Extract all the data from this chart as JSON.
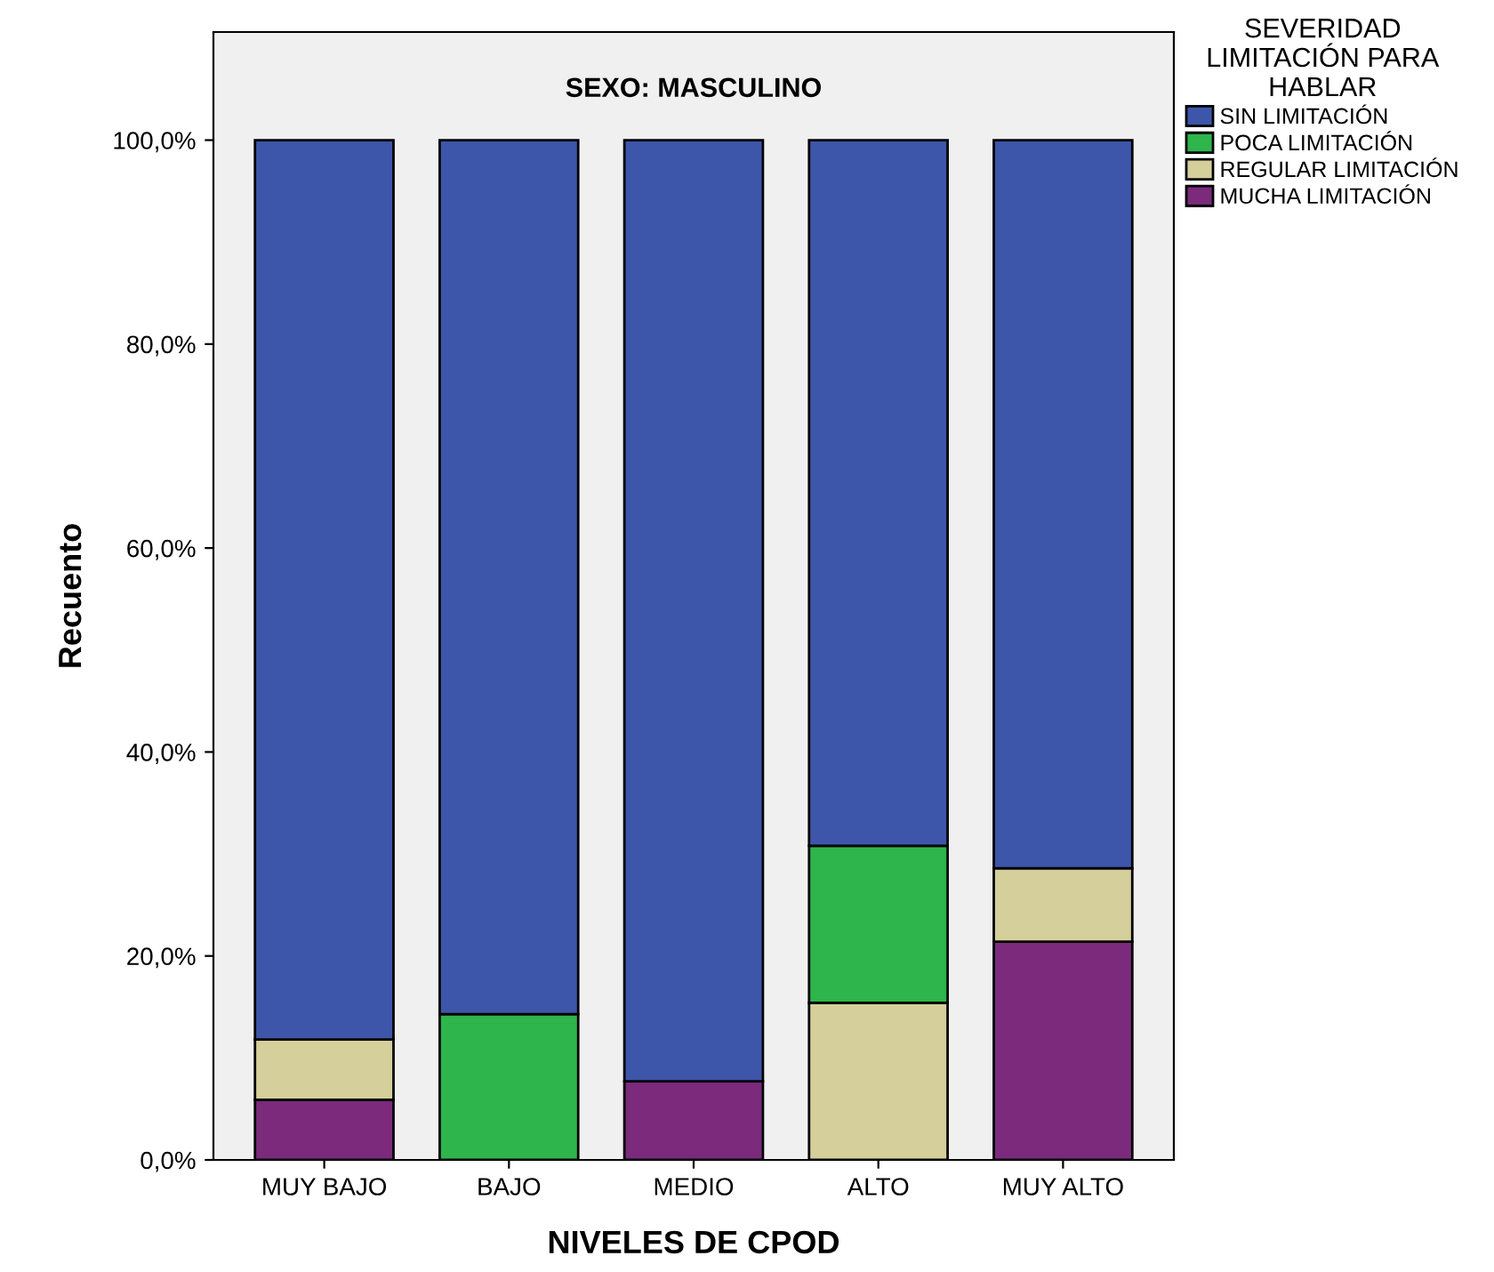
{
  "chart_data": {
    "type": "bar",
    "title": "SEXO: MASCULINO",
    "xlabel": "NIVELES DE CPOD",
    "ylabel": "Recuento",
    "legend_title": "SEVERIDAD\nLIMITACIÓN PARA\nHABLAR",
    "categories": [
      "MUY BAJO",
      "BAJO",
      "MEDIO",
      "ALTO",
      "MUY ALTO"
    ],
    "stacked": true,
    "series": [
      {
        "name": "MUCHA LIMITACIÓN",
        "color": "#7b2a7c",
        "values": [
          5.9,
          0,
          7.7,
          0,
          21.4
        ]
      },
      {
        "name": "REGULAR LIMITACIÓN",
        "color": "#d4cf9b",
        "values": [
          5.9,
          0,
          0,
          15.4,
          7.2
        ]
      },
      {
        "name": "POCA LIMITACIÓN",
        "color": "#2eb54b",
        "values": [
          0,
          14.3,
          0,
          15.4,
          0
        ]
      },
      {
        "name": "SIN LIMITACIÓN",
        "color": "#3d56aa",
        "values": [
          88.2,
          85.7,
          92.3,
          69.2,
          71.4
        ]
      }
    ],
    "ylim": [
      0,
      110.6
    ],
    "yticks": [
      {
        "value": 0,
        "label": "0,0%"
      },
      {
        "value": 20,
        "label": "20,0%"
      },
      {
        "value": 40,
        "label": "40,0%"
      },
      {
        "value": 60,
        "label": "60,0%"
      },
      {
        "value": 80,
        "label": "80,0%"
      },
      {
        "value": 100,
        "label": "100,0%"
      }
    ],
    "grid": false,
    "legend": "top right"
  }
}
